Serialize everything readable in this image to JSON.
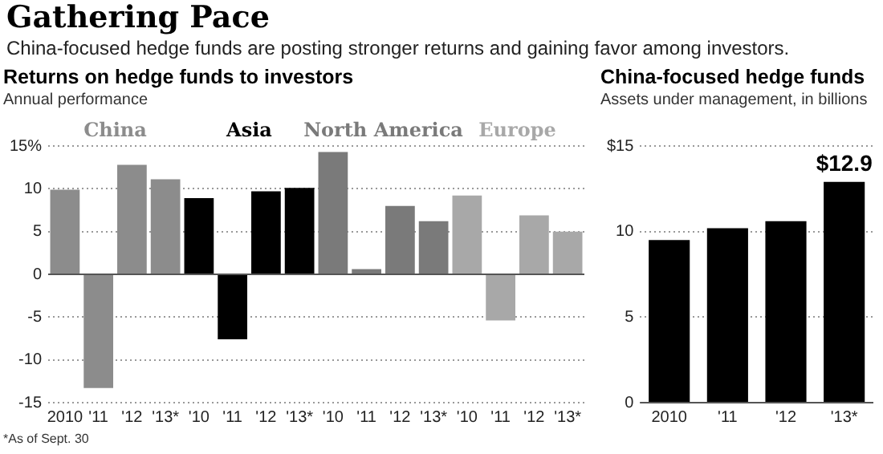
{
  "chart_data": [
    {
      "type": "other",
      "title": "Gathering Pace",
      "subtitle": "China-focused hedge funds are posting stronger returns and gaining favor among investors."
    },
    {
      "type": "bar",
      "title": "Returns on hedge funds to investors",
      "subtitle": "Annual performance",
      "categories": [
        "2010",
        "'11",
        "'12",
        "'13*",
        "'10",
        "'11",
        "'12",
        "'13*",
        "'10",
        "'11",
        "'12",
        "'13*",
        "'10",
        "'11",
        "'12",
        "'13*"
      ],
      "series": [
        {
          "name": "China",
          "color": "#8c8c8c",
          "values": [
            9.9,
            -13.3,
            12.8,
            11.1,
            null,
            null,
            null,
            null,
            null,
            null,
            null,
            null,
            null,
            null,
            null,
            null
          ]
        },
        {
          "name": "Asia",
          "color": "#000000",
          "values": [
            null,
            null,
            null,
            null,
            8.9,
            -7.6,
            9.7,
            10.1,
            null,
            null,
            null,
            null,
            null,
            null,
            null,
            null
          ]
        },
        {
          "name": "North America",
          "color": "#7a7a7a",
          "values": [
            null,
            null,
            null,
            null,
            null,
            null,
            null,
            null,
            14.3,
            0.6,
            8.0,
            6.2,
            null,
            null,
            null,
            null
          ]
        },
        {
          "name": "Europe",
          "color": "#a8a8a8",
          "values": [
            null,
            null,
            null,
            null,
            null,
            null,
            null,
            null,
            null,
            null,
            null,
            null,
            9.2,
            -5.4,
            6.9,
            5.0
          ]
        }
      ],
      "ylim": [
        -15,
        15
      ],
      "yticks": [
        {
          "value": 15,
          "label": "15%"
        },
        10,
        5,
        0,
        -5,
        -10,
        -15
      ],
      "grid": "y",
      "legend": false,
      "annotations": [
        "*As of Sept. 30"
      ]
    },
    {
      "type": "bar",
      "title": "China-focused hedge funds",
      "subtitle": "Assets under management, in billions",
      "categories": [
        "2010",
        "'11",
        "'12",
        "'13*"
      ],
      "color": "#000000",
      "values": [
        9.5,
        10.2,
        10.6,
        12.9
      ],
      "value_labels": [
        null,
        null,
        null,
        "$12.9"
      ],
      "ylim": [
        0,
        15
      ],
      "yticks": [
        {
          "value": 15,
          "label": "$15"
        },
        10,
        5,
        0
      ],
      "grid": "y",
      "legend": false
    }
  ]
}
